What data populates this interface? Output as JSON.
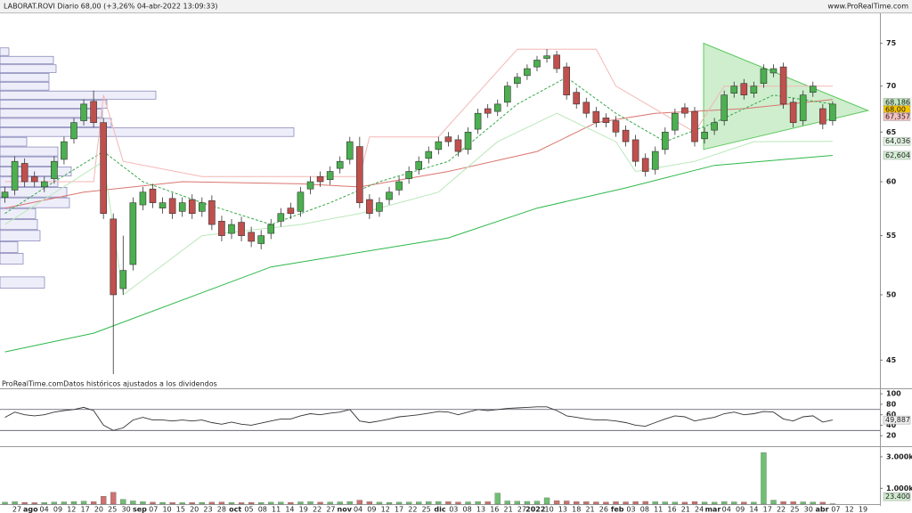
{
  "header": {
    "title": "LABORAT.ROVI Diario 68,00 (+3,26% 04-abr-2022 13:09:33)",
    "site": "www.ProRealTime.com"
  },
  "x_axis_labels": [
    "27",
    "ago",
    "04",
    "09",
    "12",
    "17",
    "20",
    "25",
    "30",
    "sep",
    "07",
    "10",
    "15",
    "20",
    "23",
    "28",
    "oct",
    "05",
    "08",
    "11",
    "14",
    "19",
    "22",
    "27",
    "nov",
    "04",
    "09",
    "12",
    "17",
    "22",
    "25",
    "dic",
    "03",
    "08",
    "13",
    "16",
    "21",
    "27",
    "2022",
    "10",
    "13",
    "18",
    "21",
    "26",
    "feb",
    "03",
    "08",
    "11",
    "16",
    "21",
    "24",
    "mar",
    "04",
    "09",
    "14",
    "17",
    "22",
    "25",
    "30",
    "abr",
    "07",
    "12",
    "19"
  ],
  "chart_data": [
    {
      "type": "candlestick",
      "log": true,
      "note": "ProRealTime.comDatos históricos ajustados a los dividendos",
      "xlim": [
        -0.5,
        88.8
      ],
      "ylim": [
        43,
        78.6
      ],
      "yticks": [
        45,
        50,
        55,
        60,
        65,
        70,
        75
      ],
      "up_color": "#4caf50",
      "down_color": "#c0504d",
      "open": [
        58.5,
        59.2,
        61.8,
        60.5,
        59.5,
        60.3,
        62.2,
        64.3,
        66.2,
        68.3,
        66,
        56.5,
        50.5,
        52.5,
        57.8,
        59.3,
        57.5,
        58.4,
        57.2,
        58.3,
        57.2,
        58.2,
        56.3,
        55.2,
        56.2,
        55.3,
        54.3,
        55.2,
        56.3,
        57.5,
        57.2,
        59.3,
        60.5,
        60.2,
        61.3,
        62.2,
        63.5,
        58.3,
        57.2,
        58.3,
        59.2,
        60.3,
        61.2,
        62.3,
        63.2,
        64.5,
        64.2,
        63.2,
        65.3,
        67.5,
        67.2,
        68.2,
        70.3,
        71.2,
        72.2,
        73.2,
        73.6,
        72.2,
        69.3,
        68.2,
        67.2,
        66.5,
        66.2,
        65.2,
        64.2,
        62.3,
        61.2,
        63.2,
        65.2,
        67.6,
        67.2,
        64.3,
        65.2,
        66.2,
        69.2,
        70.3,
        69.2,
        70.3,
        71.5,
        72.2,
        68.2,
        66.2,
        69.3,
        67.5,
        66.2
      ],
      "high": [
        59.5,
        62.5,
        62.3,
        61,
        60.5,
        62.5,
        64.5,
        66.5,
        68.5,
        69.5,
        66.5,
        57,
        55,
        58.5,
        59.5,
        59.8,
        58.5,
        58.9,
        58.5,
        58.8,
        58.5,
        58.7,
        56.8,
        56.5,
        56.7,
        55.8,
        55.5,
        56.5,
        57.5,
        58,
        59.5,
        60.5,
        61,
        61.5,
        62.5,
        64.5,
        64.5,
        58.8,
        58.5,
        59.5,
        60.5,
        61.5,
        62.5,
        63.5,
        64.5,
        65,
        64.7,
        65.5,
        67.5,
        68,
        68.5,
        70.5,
        71.5,
        72.5,
        73.5,
        74.3,
        74.1,
        72.7,
        69.8,
        68.7,
        67.7,
        67,
        66.7,
        65.7,
        64.7,
        62.8,
        63.5,
        65.5,
        67.5,
        68.1,
        67.7,
        65.5,
        66.5,
        69.5,
        70.5,
        70.8,
        70.5,
        72.5,
        72.5,
        72.7,
        68.7,
        69.5,
        70.5,
        68,
        68.3
      ],
      "low": [
        58,
        58.7,
        59.5,
        59.5,
        59,
        59.8,
        61.7,
        63.8,
        65.7,
        65.5,
        56.5,
        44,
        50,
        52,
        57.3,
        57.5,
        57,
        56.5,
        56.7,
        56.5,
        56.7,
        55.5,
        54.5,
        54.7,
        54.5,
        54,
        53.8,
        54.7,
        55.8,
        56.5,
        56.7,
        58.8,
        59.5,
        59.7,
        60.8,
        61.7,
        57.5,
        56.5,
        56.7,
        57.8,
        58.7,
        59.8,
        60.7,
        61.8,
        62.7,
        63.5,
        62.5,
        62.7,
        64.8,
        66.5,
        66.7,
        67.7,
        69.8,
        70.7,
        71.7,
        72.7,
        71.5,
        68.5,
        67.5,
        66.5,
        65.5,
        65.5,
        64.5,
        63.5,
        61.5,
        60.5,
        60.7,
        62.7,
        64.7,
        66.5,
        63.5,
        63.8,
        64.7,
        65.7,
        68.7,
        68.5,
        68.7,
        69.8,
        71,
        67.5,
        65.5,
        65.7,
        68.8,
        65.3,
        65.7
      ],
      "close": [
        59,
        62,
        60,
        60,
        60,
        62,
        64,
        66,
        68,
        66,
        57,
        50,
        52,
        58,
        59,
        58,
        58,
        57,
        58,
        57,
        58,
        56,
        55,
        56,
        55,
        54.5,
        55,
        56,
        57,
        57,
        59,
        60,
        60,
        61,
        62,
        64,
        58,
        57,
        58,
        59,
        60,
        61,
        62,
        63,
        64,
        64,
        63,
        65,
        67,
        67,
        68,
        70,
        71,
        72,
        73,
        73.5,
        72,
        69,
        68,
        67,
        66,
        66,
        65,
        64,
        62,
        61,
        63,
        65,
        67,
        67,
        64,
        65,
        66,
        69,
        70,
        69,
        70,
        72,
        72,
        68,
        66,
        69,
        70,
        65.85,
        68
      ],
      "overlays": [
        {
          "color": "#2db84a",
          "dash": false,
          "x": [
            0,
            9,
            27,
            45,
            54,
            63,
            72,
            84
          ],
          "values": [
            45.6,
            47,
            52.3,
            54.8,
            57.5,
            59.4,
            61.6,
            62.6
          ]
        },
        {
          "color": "#d9756f",
          "dash": false,
          "x": [
            0,
            8,
            18,
            30,
            36,
            45,
            54,
            60,
            66,
            75,
            84
          ],
          "values": [
            57.5,
            59,
            60,
            59.8,
            59.5,
            61,
            63,
            66,
            67,
            67.5,
            68.5
          ]
        },
        {
          "color": "#3aa84a",
          "dash": true,
          "x": [
            0,
            5,
            10,
            14,
            20,
            27,
            33,
            38,
            45,
            52,
            57,
            62,
            67,
            72,
            78,
            84
          ],
          "values": [
            57,
            60,
            63,
            60,
            58,
            56,
            58,
            60,
            62,
            68,
            71,
            67,
            64,
            66,
            69,
            68
          ]
        },
        {
          "color": "#f4b6b6",
          "dash": false,
          "x": [
            0,
            9,
            10,
            12,
            20,
            36,
            37,
            44,
            52,
            60,
            62,
            70,
            73,
            84
          ],
          "values": [
            60,
            60,
            69,
            62,
            60.5,
            60.5,
            64.5,
            64.5,
            74.3,
            74.3,
            70,
            65,
            70,
            70
          ]
        },
        {
          "color": "#b9e8b9",
          "dash": false,
          "x": [
            0,
            10,
            12,
            20,
            30,
            36,
            44,
            50,
            56,
            62,
            64,
            70,
            76,
            84
          ],
          "values": [
            56,
            62,
            50,
            55,
            56,
            57,
            59,
            64,
            67,
            64,
            61,
            62,
            64,
            64.036
          ]
        }
      ],
      "annotations": [
        {
          "type": "triangle",
          "color": "#5cc85c",
          "x": [
            70.9,
            87.6,
            70.9
          ],
          "y": [
            75,
            67.3,
            63.2
          ]
        }
      ],
      "price_tags": [
        {
          "value": 68.186,
          "label": "68,186",
          "color": "#bfe6bf"
        },
        {
          "value": 68,
          "label": "68,00",
          "color": "#f5c400"
        },
        {
          "value": 67.357,
          "label": "67,357",
          "color": "#f3c1c1"
        },
        {
          "value": 64.036,
          "label": "64,036",
          "color": "#e3f5e3"
        },
        {
          "value": 62.604,
          "label": "62,604",
          "color": "#d5efd5"
        }
      ],
      "volume_profile": {
        "xlim": [
          0,
          340
        ],
        "color": "#eeeefa",
        "bins": [
          50.5,
          51.5,
          52.5,
          53.5,
          54.5,
          55.5,
          56.5,
          57.5,
          58.5,
          59.5,
          60.5,
          61.5,
          62.5,
          63.5,
          64.5,
          65.5,
          66.5,
          67.5,
          68.5,
          69.5,
          70.5,
          71.5,
          72.5,
          73.5,
          74.5
        ],
        "counts": [
          50,
          0,
          26,
          20,
          45,
          42,
          40,
          78,
          75,
          65,
          80,
          65,
          65,
          30,
          330,
          125,
          115,
          120,
          175,
          55,
          55,
          63,
          60,
          10
        ]
      }
    },
    {
      "type": "line",
      "color": "#333333",
      "xlim": [
        -0.5,
        88.8
      ],
      "ylim": [
        0,
        107
      ],
      "yticks": [
        20,
        40,
        60,
        80,
        100
      ],
      "levels": [
        30,
        70
      ],
      "values": [
        55,
        65,
        60,
        58,
        60,
        65,
        68,
        70,
        74,
        68,
        40,
        30,
        35,
        50,
        55,
        50,
        50,
        48,
        50,
        48,
        50,
        45,
        42,
        46,
        42,
        40,
        44,
        48,
        52,
        52,
        58,
        62,
        60,
        63,
        65,
        70,
        48,
        45,
        48,
        52,
        56,
        58,
        60,
        63,
        66,
        65,
        60,
        65,
        70,
        68,
        70,
        72,
        73,
        74,
        75,
        75,
        68,
        58,
        55,
        52,
        50,
        50,
        48,
        45,
        40,
        38,
        45,
        52,
        58,
        56,
        48,
        52,
        55,
        62,
        65,
        60,
        62,
        66,
        65,
        52,
        48,
        56,
        58,
        46,
        49.887
      ],
      "tag": {
        "value": 49.887,
        "label": "49,887"
      }
    },
    {
      "type": "bar",
      "xlim": [
        -0.5,
        88.8
      ],
      "ylim": [
        0,
        3560000
      ],
      "yticks": [
        {
          "value": 1000000,
          "label": "1.000k"
        },
        {
          "value": 3000000,
          "label": "3.000k"
        }
      ],
      "values": [
        120000,
        150000,
        110000,
        90000,
        100000,
        130000,
        140000,
        160000,
        180000,
        150000,
        500000,
        750000,
        300000,
        200000,
        150000,
        120000,
        110000,
        100000,
        90000,
        100000,
        110000,
        120000,
        130000,
        100000,
        90000,
        110000,
        100000,
        120000,
        130000,
        110000,
        140000,
        150000,
        120000,
        130000,
        140000,
        160000,
        250000,
        150000,
        120000,
        110000,
        120000,
        130000,
        140000,
        150000,
        160000,
        150000,
        130000,
        140000,
        160000,
        150000,
        700000,
        200000,
        180000,
        170000,
        190000,
        400000,
        220000,
        200000,
        160000,
        150000,
        140000,
        130000,
        150000,
        140000,
        160000,
        170000,
        150000,
        140000,
        130000,
        120000,
        160000,
        130000,
        120000,
        150000,
        140000,
        130000,
        120000,
        3270000,
        250000,
        160000,
        150000,
        140000,
        130000,
        120000,
        23400
      ],
      "tag": {
        "value": 23400,
        "label": "23.400"
      }
    }
  ]
}
